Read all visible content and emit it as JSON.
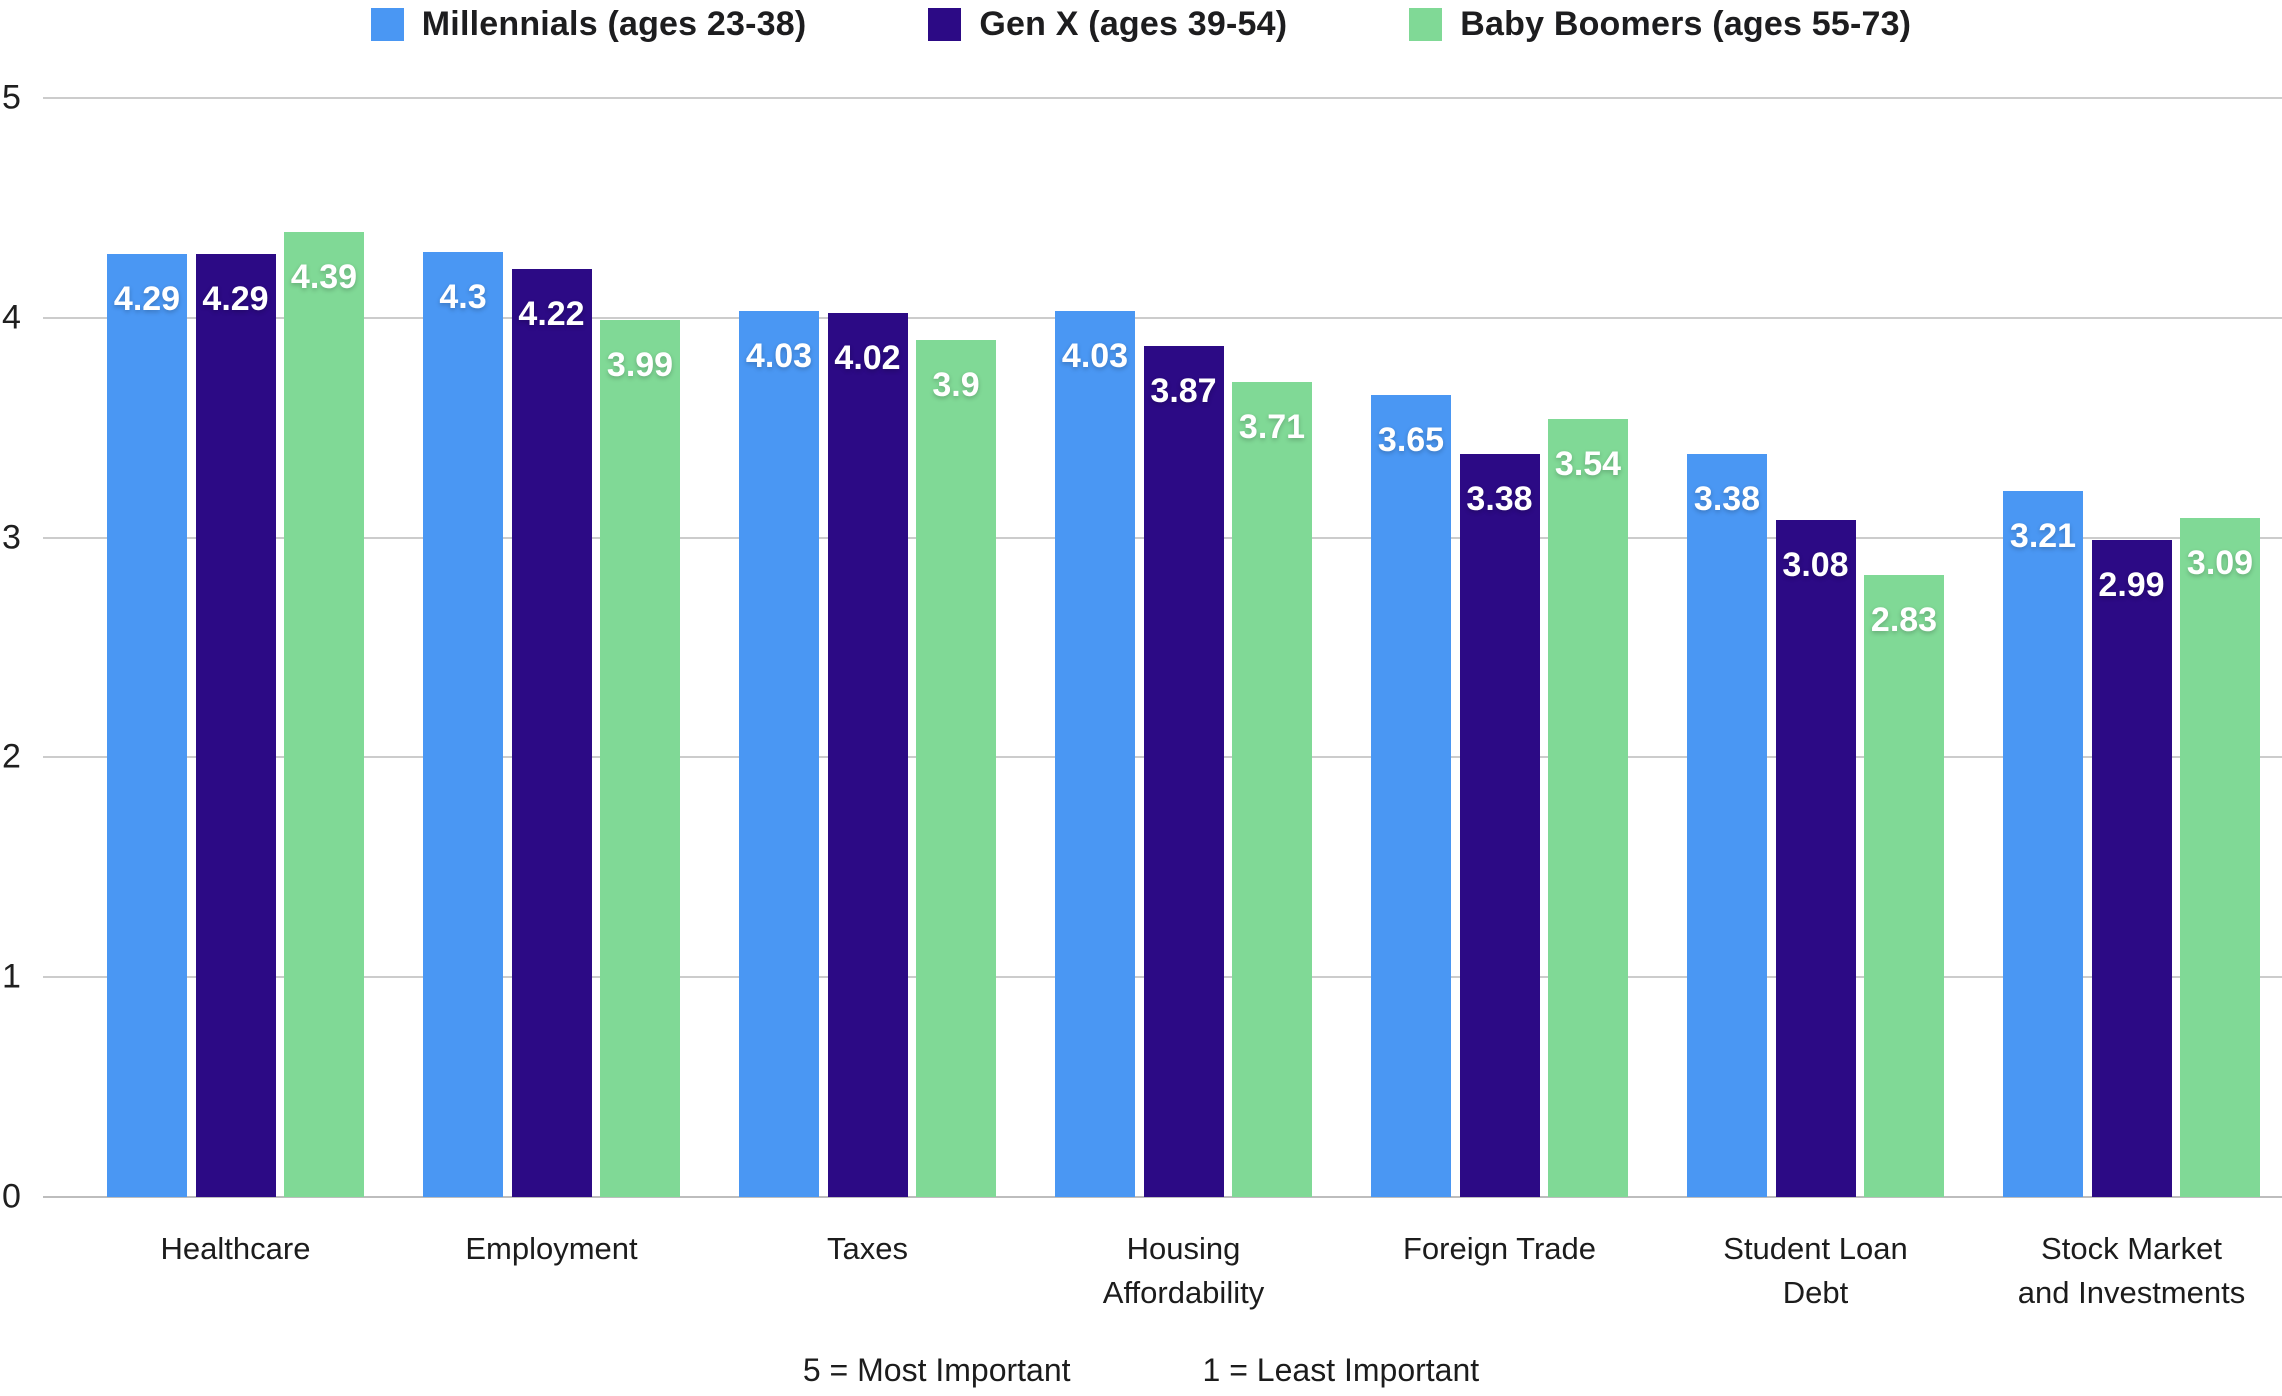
{
  "chart_data": {
    "type": "bar",
    "title": "",
    "xlabel": "",
    "ylabel": "",
    "categories": [
      "Healthcare",
      "Employment",
      "Taxes",
      "Housing Affordability",
      "Foreign Trade",
      "Student Loan Debt",
      "Stock Market and Investments"
    ],
    "series": [
      {
        "name": "Millennials (ages 23-38)",
        "color": "#4a97f3",
        "values": [
          4.29,
          4.3,
          4.03,
          4.03,
          3.65,
          3.38,
          3.21
        ]
      },
      {
        "name": "Gen X (ages 39-54)",
        "color": "#2c0a85",
        "values": [
          4.29,
          4.22,
          4.02,
          3.87,
          3.38,
          3.08,
          2.99
        ]
      },
      {
        "name": "Baby Boomers (ages 55-73)",
        "color": "#80d996",
        "values": [
          4.39,
          3.99,
          3.9,
          3.71,
          3.54,
          2.83,
          3.09
        ]
      }
    ],
    "ylim": [
      0,
      5
    ],
    "yticks": [
      "0",
      "1",
      "2",
      "3",
      "4",
      "5"
    ],
    "grid": "horizontal",
    "legend_position": "top",
    "value_labels": "inside-bar-top",
    "footnotes": {
      "most": "5 = Most Important",
      "least": "1 = Least Important"
    }
  },
  "colors": {
    "gridline": "#cccccc",
    "baseline": "#bdbdbd",
    "value_label_text": "#ffffff"
  }
}
